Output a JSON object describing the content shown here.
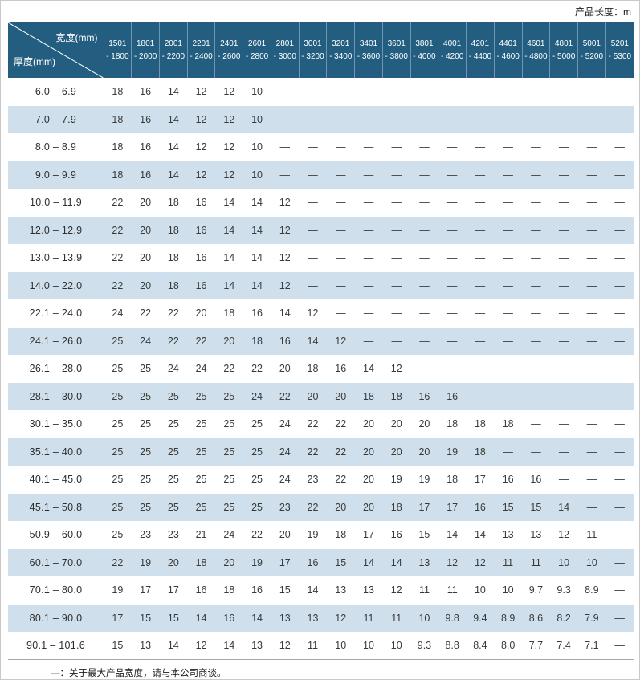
{
  "page": {
    "top_right_label": "产品长度：m",
    "footnote": "—：关于最大产品宽度，请与本公司商谈。"
  },
  "colors": {
    "header_bg": "#235E80",
    "stripe_bg": "#CFE0EC"
  },
  "table": {
    "corner": {
      "width_label": "宽度(mm)",
      "thickness_label": "厚度(mm)"
    },
    "columns": [
      {
        "line1": "1501",
        "line2": "- 1800"
      },
      {
        "line1": "1801",
        "line2": "- 2000"
      },
      {
        "line1": "2001",
        "line2": "- 2200"
      },
      {
        "line1": "2201",
        "line2": "- 2400"
      },
      {
        "line1": "2401",
        "line2": "- 2600"
      },
      {
        "line1": "2601",
        "line2": "- 2800"
      },
      {
        "line1": "2801",
        "line2": "- 3000"
      },
      {
        "line1": "3001",
        "line2": "- 3200"
      },
      {
        "line1": "3201",
        "line2": "- 3400"
      },
      {
        "line1": "3401",
        "line2": "- 3600"
      },
      {
        "line1": "3601",
        "line2": "- 3800"
      },
      {
        "line1": "3801",
        "line2": "- 4000"
      },
      {
        "line1": "4001",
        "line2": "- 4200"
      },
      {
        "line1": "4201",
        "line2": "- 4400"
      },
      {
        "line1": "4401",
        "line2": "- 4600"
      },
      {
        "line1": "4601",
        "line2": "- 4800"
      },
      {
        "line1": "4801",
        "line2": "- 5000"
      },
      {
        "line1": "5001",
        "line2": "- 5200"
      },
      {
        "line1": "5201",
        "line2": "- 5300"
      }
    ],
    "rows": [
      {
        "thickness": "6.0 – 6.9",
        "values": [
          "18",
          "16",
          "14",
          "12",
          "12",
          "10",
          "—",
          "—",
          "—",
          "—",
          "—",
          "—",
          "—",
          "—",
          "—",
          "—",
          "—",
          "—",
          "—"
        ]
      },
      {
        "thickness": "7.0 – 7.9",
        "values": [
          "18",
          "16",
          "14",
          "12",
          "12",
          "10",
          "—",
          "—",
          "—",
          "—",
          "—",
          "—",
          "—",
          "—",
          "—",
          "—",
          "—",
          "—",
          "—"
        ]
      },
      {
        "thickness": "8.0 – 8.9",
        "values": [
          "18",
          "16",
          "14",
          "12",
          "12",
          "10",
          "—",
          "—",
          "—",
          "—",
          "—",
          "—",
          "—",
          "—",
          "—",
          "—",
          "—",
          "—",
          "—"
        ]
      },
      {
        "thickness": "9.0 – 9.9",
        "values": [
          "18",
          "16",
          "14",
          "12",
          "12",
          "10",
          "—",
          "—",
          "—",
          "—",
          "—",
          "—",
          "—",
          "—",
          "—",
          "—",
          "—",
          "—",
          "—"
        ]
      },
      {
        "thickness": "10.0 – 11.9",
        "values": [
          "22",
          "20",
          "18",
          "16",
          "14",
          "14",
          "12",
          "—",
          "—",
          "—",
          "—",
          "—",
          "—",
          "—",
          "—",
          "—",
          "—",
          "—",
          "—"
        ]
      },
      {
        "thickness": "12.0 – 12.9",
        "values": [
          "22",
          "20",
          "18",
          "16",
          "14",
          "14",
          "12",
          "—",
          "—",
          "—",
          "—",
          "—",
          "—",
          "—",
          "—",
          "—",
          "—",
          "—",
          "—"
        ]
      },
      {
        "thickness": "13.0 – 13.9",
        "values": [
          "22",
          "20",
          "18",
          "16",
          "14",
          "14",
          "12",
          "—",
          "—",
          "—",
          "—",
          "—",
          "—",
          "—",
          "—",
          "—",
          "—",
          "—",
          "—"
        ]
      },
      {
        "thickness": "14.0 – 22.0",
        "values": [
          "22",
          "20",
          "18",
          "16",
          "14",
          "14",
          "12",
          "—",
          "—",
          "—",
          "—",
          "—",
          "—",
          "—",
          "—",
          "—",
          "—",
          "—",
          "—"
        ]
      },
      {
        "thickness": "22.1 – 24.0",
        "values": [
          "24",
          "22",
          "22",
          "20",
          "18",
          "16",
          "14",
          "12",
          "—",
          "—",
          "—",
          "—",
          "—",
          "—",
          "—",
          "—",
          "—",
          "—",
          "—"
        ]
      },
      {
        "thickness": "24.1 – 26.0",
        "values": [
          "25",
          "24",
          "22",
          "22",
          "20",
          "18",
          "16",
          "14",
          "12",
          "—",
          "—",
          "—",
          "—",
          "—",
          "—",
          "—",
          "—",
          "—",
          "—"
        ]
      },
      {
        "thickness": "26.1 – 28.0",
        "values": [
          "25",
          "25",
          "24",
          "24",
          "22",
          "22",
          "20",
          "18",
          "16",
          "14",
          "12",
          "—",
          "—",
          "—",
          "—",
          "—",
          "—",
          "—",
          "—"
        ]
      },
      {
        "thickness": "28.1 – 30.0",
        "values": [
          "25",
          "25",
          "25",
          "25",
          "25",
          "24",
          "22",
          "20",
          "20",
          "18",
          "18",
          "16",
          "16",
          "—",
          "—",
          "—",
          "—",
          "—",
          "—"
        ]
      },
      {
        "thickness": "30.1 – 35.0",
        "values": [
          "25",
          "25",
          "25",
          "25",
          "25",
          "25",
          "24",
          "22",
          "22",
          "20",
          "20",
          "20",
          "18",
          "18",
          "18",
          "—",
          "—",
          "—",
          "—"
        ]
      },
      {
        "thickness": "35.1 – 40.0",
        "values": [
          "25",
          "25",
          "25",
          "25",
          "25",
          "25",
          "24",
          "22",
          "22",
          "20",
          "20",
          "20",
          "19",
          "18",
          "—",
          "—",
          "—",
          "—",
          "—"
        ]
      },
      {
        "thickness": "40.1 – 45.0",
        "values": [
          "25",
          "25",
          "25",
          "25",
          "25",
          "25",
          "24",
          "23",
          "22",
          "20",
          "19",
          "19",
          "18",
          "17",
          "16",
          "16",
          "—",
          "—",
          "—"
        ]
      },
      {
        "thickness": "45.1 – 50.8",
        "values": [
          "25",
          "25",
          "25",
          "25",
          "25",
          "25",
          "23",
          "22",
          "20",
          "20",
          "18",
          "17",
          "17",
          "16",
          "15",
          "15",
          "14",
          "—",
          "—"
        ]
      },
      {
        "thickness": "50.9 – 60.0",
        "values": [
          "25",
          "23",
          "23",
          "21",
          "24",
          "22",
          "20",
          "19",
          "18",
          "17",
          "16",
          "15",
          "14",
          "14",
          "13",
          "13",
          "12",
          "11",
          "—"
        ]
      },
      {
        "thickness": "60.1 – 70.0",
        "values": [
          "22",
          "19",
          "20",
          "18",
          "20",
          "19",
          "17",
          "16",
          "15",
          "14",
          "14",
          "13",
          "12",
          "12",
          "11",
          "11",
          "10",
          "10",
          "—"
        ]
      },
      {
        "thickness": "70.1 – 80.0",
        "values": [
          "19",
          "17",
          "17",
          "16",
          "18",
          "16",
          "15",
          "14",
          "13",
          "13",
          "12",
          "11",
          "11",
          "10",
          "10",
          "9.7",
          "9.3",
          "8.9",
          "—"
        ]
      },
      {
        "thickness": "80.1 – 90.0",
        "values": [
          "17",
          "15",
          "15",
          "14",
          "16",
          "14",
          "13",
          "13",
          "12",
          "11",
          "11",
          "10",
          "9.8",
          "9.4",
          "8.9",
          "8.6",
          "8.2",
          "7.9",
          "—"
        ]
      },
      {
        "thickness": "90.1 – 101.6",
        "values": [
          "15",
          "13",
          "14",
          "12",
          "14",
          "13",
          "12",
          "11",
          "10",
          "10",
          "10",
          "9.3",
          "8.8",
          "8.4",
          "8.0",
          "7.7",
          "7.4",
          "7.1",
          "—"
        ]
      }
    ]
  }
}
